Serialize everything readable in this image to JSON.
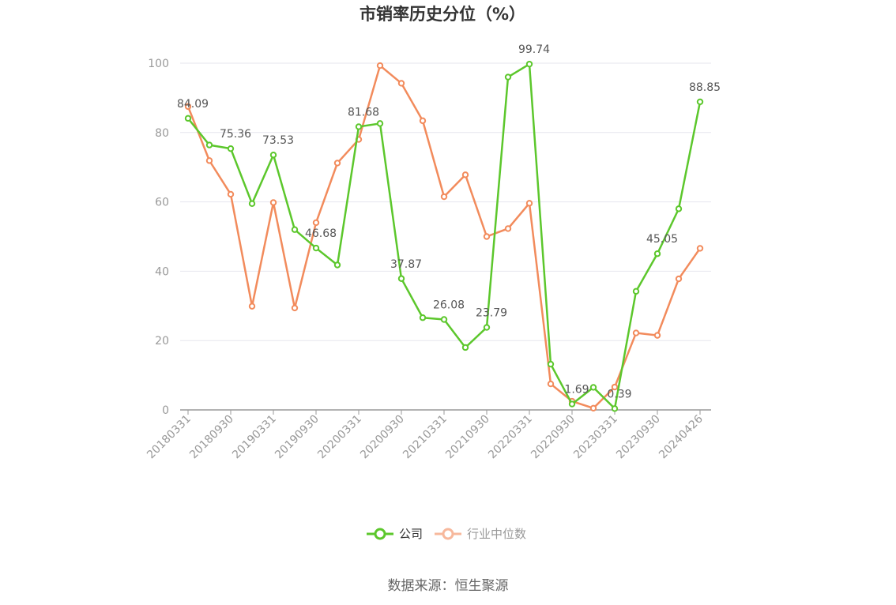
{
  "chart_data": {
    "type": "line",
    "title": "市销率历史分位（%）",
    "xlabel": "",
    "ylabel": "",
    "ylim": [
      0,
      100
    ],
    "yticks": [
      0,
      20,
      40,
      60,
      80,
      100
    ],
    "grid": true,
    "legend_position": "bottom-center",
    "x": [
      "20180331",
      "20180630",
      "20180930",
      "20181231",
      "20190331",
      "20190630",
      "20190930",
      "20191231",
      "20200331",
      "20200630",
      "20200930",
      "20201231",
      "20210331",
      "20210630",
      "20210930",
      "20211231",
      "20220331",
      "20220630",
      "20220930",
      "20221231",
      "20230331",
      "20230630",
      "20230930",
      "20231231",
      "20240426"
    ],
    "x_tick_labels": [
      "20180331",
      "20180930",
      "20190331",
      "20190930",
      "20200331",
      "20200930",
      "20210331",
      "20210930",
      "20220331",
      "20220930",
      "20230331",
      "20230930",
      "20240426"
    ],
    "x_tick_indices": [
      0,
      2,
      4,
      6,
      8,
      10,
      12,
      14,
      16,
      18,
      20,
      22,
      24
    ],
    "series": [
      {
        "name": "公司",
        "color": "#5cc72c",
        "values": [
          84.09,
          76.4,
          75.36,
          59.5,
          73.53,
          52.0,
          46.68,
          41.8,
          81.68,
          82.6,
          37.87,
          26.6,
          26.08,
          18.0,
          23.79,
          96.0,
          99.74,
          13.2,
          1.69,
          6.5,
          0.39,
          34.2,
          45.05,
          58.0,
          88.85
        ],
        "labeled": {
          "0": "84.09",
          "2": "75.36",
          "4": "73.53",
          "6": "46.68",
          "8": "81.68",
          "10": "37.87",
          "12": "26.08",
          "14": "23.79",
          "16": "99.74",
          "18": "1.69",
          "20": "0.39",
          "22": "45.05",
          "24": "88.85"
        }
      },
      {
        "name": "行业中位数",
        "color": "#f28b5c",
        "values": [
          87.5,
          71.9,
          62.2,
          29.9,
          59.8,
          29.4,
          54.0,
          71.2,
          78.0,
          99.3,
          94.2,
          83.4,
          61.5,
          67.8,
          50.0,
          52.3,
          59.6,
          7.5,
          2.5,
          0.5,
          6.6,
          22.2,
          21.5,
          37.8,
          46.6
        ]
      }
    ]
  },
  "source": "数据来源：恒生聚源"
}
